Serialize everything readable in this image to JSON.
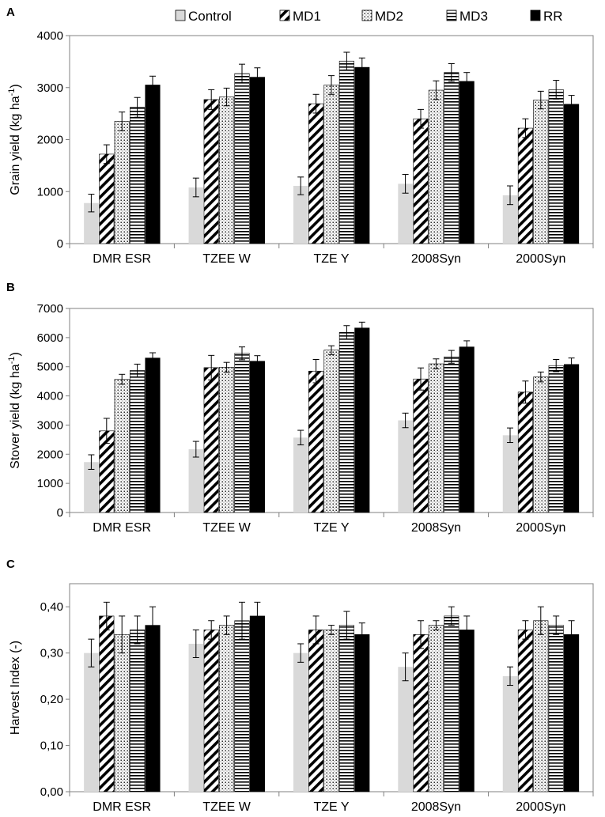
{
  "legend": [
    "Control",
    "MD1",
    "MD2",
    "MD3",
    "RR"
  ],
  "colors": {
    "control": "#d9d9d9",
    "rr": "#000000",
    "axis": "#808080"
  },
  "chart_data": [
    {
      "type": "bar",
      "panel": "A",
      "ylabel_main": "Grain yield (kg ha",
      "ylabel_sup": "-1",
      "ylabel_close": ")",
      "ylim": [
        0,
        4000
      ],
      "ticks": [
        0,
        1000,
        2000,
        3000,
        4000
      ],
      "tick_labels": [
        "0",
        "1000",
        "2000",
        "3000",
        "4000"
      ],
      "categories": [
        "DMR ESR",
        "TZEE W",
        "TZE Y",
        "2008Syn",
        "2000Syn"
      ],
      "series": [
        {
          "name": "Control",
          "values": [
            780,
            1080,
            1110,
            1150,
            930
          ],
          "errors": [
            170,
            180,
            170,
            180,
            180
          ]
        },
        {
          "name": "MD1",
          "values": [
            1720,
            2770,
            2690,
            2400,
            2220
          ],
          "errors": [
            180,
            190,
            180,
            180,
            180
          ]
        },
        {
          "name": "MD2",
          "values": [
            2350,
            2820,
            3050,
            2950,
            2760
          ],
          "errors": [
            180,
            170,
            180,
            180,
            170
          ]
        },
        {
          "name": "MD3",
          "values": [
            2620,
            3270,
            3510,
            3290,
            2960
          ],
          "errors": [
            190,
            180,
            170,
            170,
            180
          ]
        },
        {
          "name": "RR",
          "values": [
            3050,
            3200,
            3390,
            3120,
            2680
          ],
          "errors": [
            170,
            180,
            180,
            170,
            170
          ]
        }
      ]
    },
    {
      "type": "bar",
      "panel": "B",
      "ylabel_main": "Stover yield (kg ha",
      "ylabel_sup": "-1",
      "ylabel_close": ")",
      "ylim": [
        0,
        7000
      ],
      "ticks": [
        0,
        1000,
        2000,
        3000,
        4000,
        5000,
        6000,
        7000
      ],
      "tick_labels": [
        "0",
        "1000",
        "2000",
        "3000",
        "4000",
        "5000",
        "6000",
        "7000"
      ],
      "categories": [
        "DMR ESR",
        "TZEE W",
        "TZE Y",
        "2008Syn",
        "2000Syn"
      ],
      "series": [
        {
          "name": "Control",
          "values": [
            1730,
            2170,
            2570,
            3160,
            2650
          ],
          "errors": [
            250,
            270,
            250,
            250,
            250
          ]
        },
        {
          "name": "MD1",
          "values": [
            2800,
            4970,
            4850,
            4580,
            4130
          ],
          "errors": [
            430,
            420,
            400,
            380,
            380
          ]
        },
        {
          "name": "MD2",
          "values": [
            4570,
            4980,
            5570,
            5100,
            4650
          ],
          "errors": [
            170,
            170,
            150,
            170,
            170
          ]
        },
        {
          "name": "MD3",
          "values": [
            4870,
            5460,
            6180,
            5340,
            5040
          ],
          "errors": [
            220,
            220,
            230,
            220,
            210
          ]
        },
        {
          "name": "RR",
          "values": [
            5300,
            5190,
            6330,
            5680,
            5080
          ],
          "errors": [
            180,
            190,
            200,
            210,
            220
          ]
        }
      ]
    },
    {
      "type": "bar",
      "panel": "C",
      "ylabel_main": "Harvest Index (-)",
      "ylabel_sup": "",
      "ylabel_close": "",
      "ylim": [
        0,
        0.45
      ],
      "ticks": [
        0,
        0.1,
        0.2,
        0.3,
        0.4
      ],
      "tick_labels": [
        "0,00",
        "0,10",
        "0,20",
        "0,30",
        "0,40"
      ],
      "categories": [
        "DMR ESR",
        "TZEE W",
        "TZE Y",
        "2008Syn",
        "2000Syn"
      ],
      "series": [
        {
          "name": "Control",
          "values": [
            0.3,
            0.32,
            0.3,
            0.27,
            0.25
          ],
          "errors": [
            0.03,
            0.03,
            0.02,
            0.03,
            0.02
          ]
        },
        {
          "name": "MD1",
          "values": [
            0.38,
            0.35,
            0.35,
            0.34,
            0.35
          ],
          "errors": [
            0.03,
            0.02,
            0.03,
            0.03,
            0.02
          ]
        },
        {
          "name": "MD2",
          "values": [
            0.34,
            0.36,
            0.35,
            0.36,
            0.37
          ],
          "errors": [
            0.04,
            0.02,
            0.01,
            0.01,
            0.03
          ]
        },
        {
          "name": "MD3",
          "values": [
            0.35,
            0.37,
            0.36,
            0.38,
            0.36
          ],
          "errors": [
            0.03,
            0.04,
            0.03,
            0.02,
            0.02
          ]
        },
        {
          "name": "RR",
          "values": [
            0.36,
            0.38,
            0.34,
            0.35,
            0.34
          ],
          "errors": [
            0.04,
            0.03,
            0.025,
            0.03,
            0.03
          ]
        }
      ]
    }
  ]
}
